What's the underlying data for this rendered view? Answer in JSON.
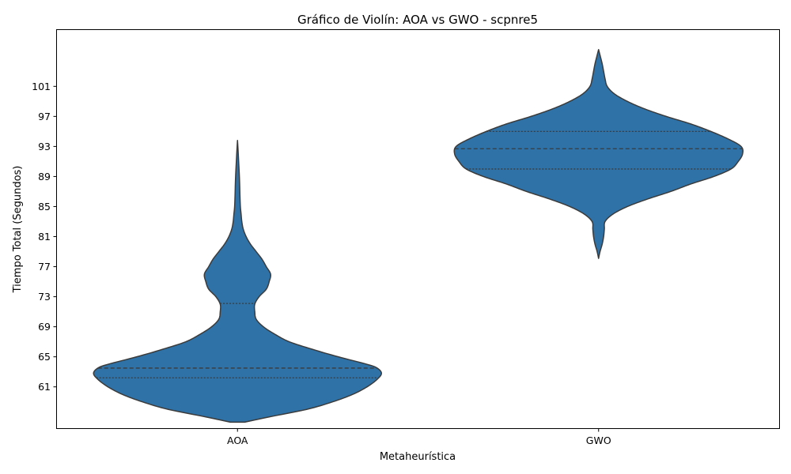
{
  "chart_data": {
    "type": "violin",
    "title": "Gráfico de Violín: AOA vs GWO - scpnre5",
    "xlabel": "Metaheurística",
    "ylabel": "Tiempo Total (Segundos)",
    "categories": [
      "AOA",
      "GWO"
    ],
    "yticks": [
      "61",
      "65",
      "69",
      "73",
      "77",
      "81",
      "85",
      "89",
      "93",
      "97",
      "101"
    ],
    "ylim": [
      55.5,
      108.5
    ],
    "grid": false,
    "fill_color": "#2e72a8",
    "edge_color": "#3b3b3b",
    "violins": [
      {
        "category": "AOA",
        "min": 56.3,
        "max": 93.8,
        "q1": 62.2,
        "median": 63.5,
        "q3": 72.1,
        "profile": [
          [
            56.3,
            0.05
          ],
          [
            57.0,
            0.22
          ],
          [
            58.0,
            0.48
          ],
          [
            59.0,
            0.66
          ],
          [
            60.0,
            0.8
          ],
          [
            61.0,
            0.9
          ],
          [
            62.0,
            0.97
          ],
          [
            62.8,
            1.0
          ],
          [
            63.5,
            0.97
          ],
          [
            64.0,
            0.9
          ],
          [
            65.0,
            0.7
          ],
          [
            66.0,
            0.52
          ],
          [
            67.0,
            0.36
          ],
          [
            68.0,
            0.26
          ],
          [
            69.0,
            0.18
          ],
          [
            70.0,
            0.13
          ],
          [
            71.0,
            0.12
          ],
          [
            72.0,
            0.12
          ],
          [
            73.0,
            0.15
          ],
          [
            74.0,
            0.2
          ],
          [
            75.0,
            0.22
          ],
          [
            76.0,
            0.23
          ],
          [
            77.0,
            0.2
          ],
          [
            78.0,
            0.17
          ],
          [
            79.0,
            0.13
          ],
          [
            80.0,
            0.09
          ],
          [
            81.0,
            0.06
          ],
          [
            82.0,
            0.04
          ],
          [
            83.0,
            0.03
          ],
          [
            84.0,
            0.025
          ],
          [
            85.0,
            0.02
          ],
          [
            86.5,
            0.017
          ],
          [
            88.0,
            0.015
          ],
          [
            89.5,
            0.012
          ],
          [
            91.0,
            0.008
          ],
          [
            92.5,
            0.004
          ],
          [
            93.8,
            0.0
          ]
        ]
      },
      {
        "category": "GWO",
        "min": 78.1,
        "max": 105.9,
        "q1": 90.0,
        "median": 92.7,
        "q3": 95.0,
        "profile": [
          [
            78.1,
            0.0
          ],
          [
            79.0,
            0.01
          ],
          [
            80.0,
            0.025
          ],
          [
            81.0,
            0.035
          ],
          [
            82.0,
            0.04
          ],
          [
            83.0,
            0.045
          ],
          [
            84.0,
            0.1
          ],
          [
            85.0,
            0.2
          ],
          [
            86.0,
            0.34
          ],
          [
            87.0,
            0.5
          ],
          [
            88.0,
            0.64
          ],
          [
            89.0,
            0.8
          ],
          [
            90.0,
            0.92
          ],
          [
            91.0,
            0.97
          ],
          [
            92.0,
            1.0
          ],
          [
            93.0,
            0.99
          ],
          [
            94.0,
            0.9
          ],
          [
            95.0,
            0.78
          ],
          [
            96.0,
            0.64
          ],
          [
            97.0,
            0.47
          ],
          [
            98.0,
            0.32
          ],
          [
            99.0,
            0.2
          ],
          [
            100.0,
            0.11
          ],
          [
            101.0,
            0.06
          ],
          [
            102.0,
            0.045
          ],
          [
            103.0,
            0.035
          ],
          [
            104.0,
            0.025
          ],
          [
            105.0,
            0.012
          ],
          [
            105.9,
            0.0
          ]
        ]
      }
    ]
  }
}
